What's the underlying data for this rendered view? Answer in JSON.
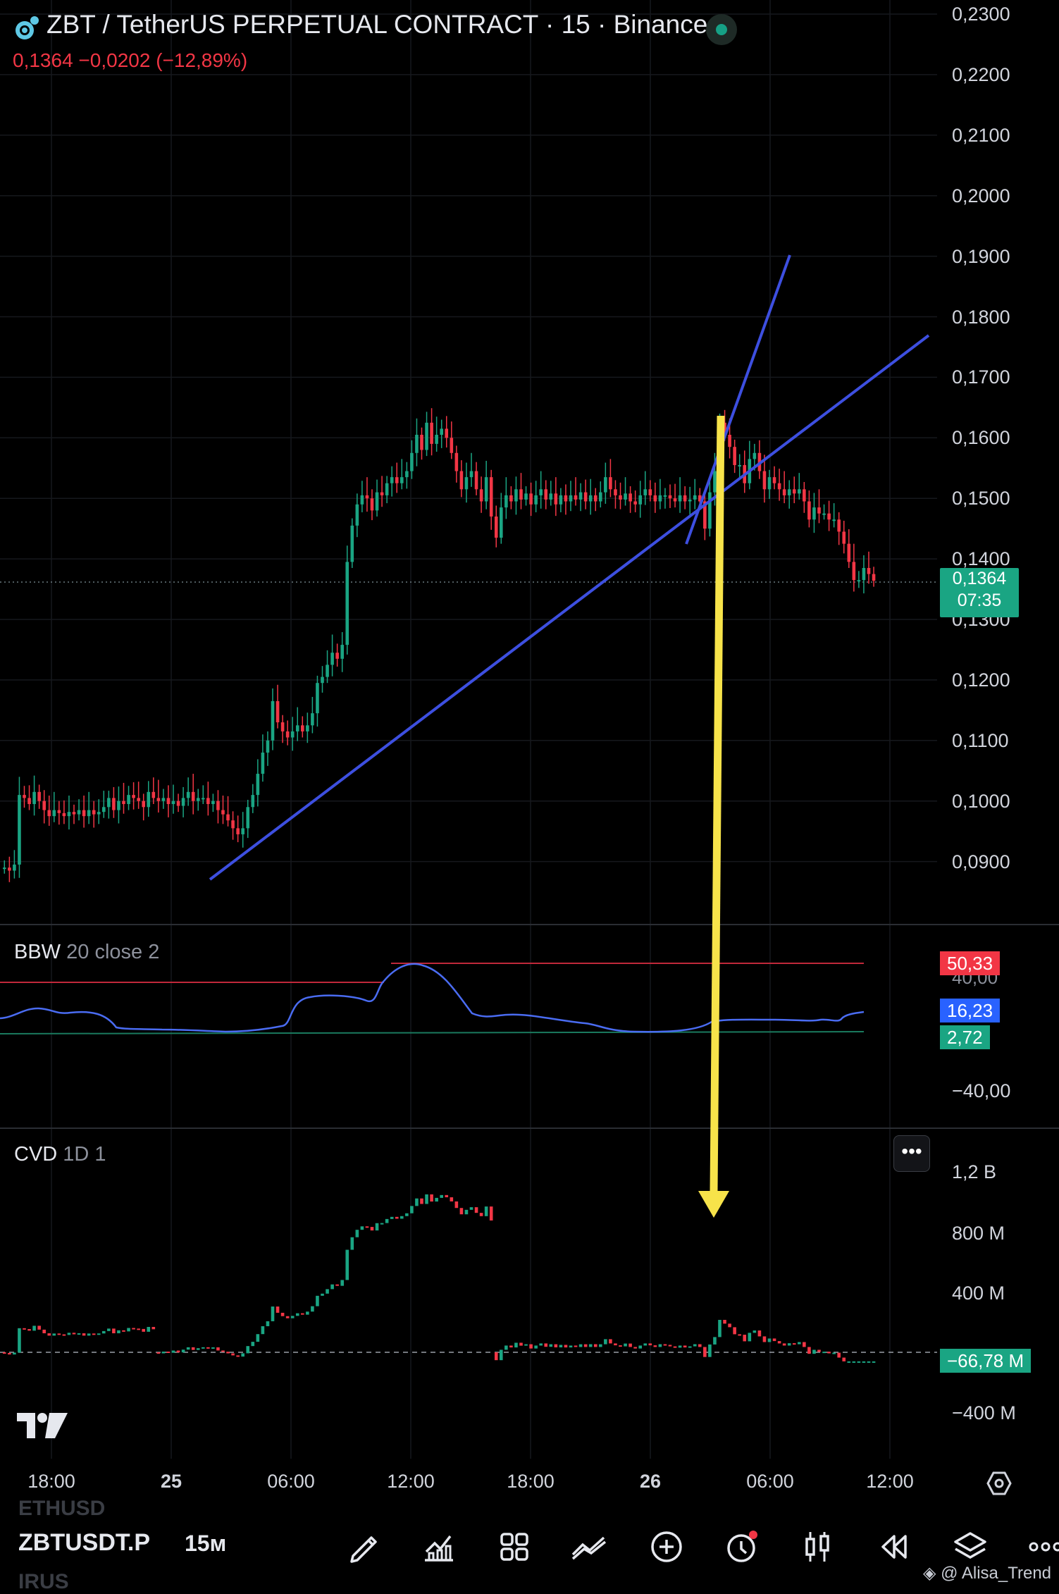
{
  "header": {
    "title": "ZBT / TetherUS PERPETUAL CONTRACT · 15 · Binance",
    "quote": "0,1364  −0,0202 (−12,89%)"
  },
  "price_axis": {
    "ticks": [
      "0,2300",
      "0,2200",
      "0,2100",
      "0,2000",
      "0,1900",
      "0,1800",
      "0,1700",
      "0,1600",
      "0,1500",
      "0,1400",
      "0,1300",
      "0,1200",
      "0,1100",
      "0,1000",
      "0,0900"
    ],
    "last_price": "0,1364",
    "countdown": "07:35"
  },
  "bbw": {
    "title": "BBW",
    "params": "20 close 2",
    "upper_label": "50,33",
    "upper_hidden_tick": "40,00",
    "value_label": "16,23",
    "lower_label": "2,72",
    "axis_tick": "−40,00",
    "colors": {
      "line": "#3d6bf2",
      "upper": "#f23645",
      "lower": "#1aa583"
    }
  },
  "cvd": {
    "title": "CVD",
    "params": "1D 1",
    "more_label": "•••",
    "ticks": [
      "1,2 B",
      "800 M",
      "400 M",
      "−400 M"
    ],
    "value_label": "−66,78 M"
  },
  "time_axis": {
    "labels": [
      "18:00",
      "25",
      "06:00",
      "12:00",
      "18:00",
      "26",
      "06:00",
      "12:00"
    ]
  },
  "bottom_bar": {
    "symbol": "ZBTUSDT.P",
    "timeframe": "15м",
    "ghost_above": "ETHUSD",
    "ghost_below": "IRUS",
    "icons": [
      "draw-icon",
      "indicators-icon",
      "layout-icon",
      "compare-icon",
      "add-icon",
      "alert-icon",
      "chart-type-icon",
      "replay-icon",
      "layers-icon",
      "more-icon"
    ]
  },
  "watermark": "@ Alisa_Trend",
  "colors": {
    "up": "#1aa583",
    "down": "#f23645",
    "trendline": "#3d4fe0",
    "arrow": "#f7e34a"
  },
  "chart_data": {
    "type": "candlestick",
    "ylim": [
      0.085,
      0.23
    ],
    "last": 0.1364,
    "x_labels": [
      "18:00",
      "25",
      "06:00",
      "12:00",
      "18:00",
      "26",
      "06:00",
      "12:00"
    ],
    "closes": [
      0.089,
      0.0885,
      0.0895,
      0.101,
      0.1005,
      0.0995,
      0.1015,
      0.1,
      0.0985,
      0.0975,
      0.0985,
      0.098,
      0.0975,
      0.0982,
      0.0978,
      0.0985,
      0.0975,
      0.0985,
      0.0978,
      0.0982,
      0.099,
      0.1005,
      0.0985,
      0.1,
      0.0995,
      0.101,
      0.1005,
      0.1,
      0.099,
      0.1015,
      0.1005,
      0.1,
      0.1005,
      0.0995,
      0.1,
      0.0992,
      0.1005,
      0.1015,
      0.1,
      0.1005,
      0.1005,
      0.0995,
      0.1,
      0.0985,
      0.0978,
      0.0968,
      0.0955,
      0.0945,
      0.0955,
      0.099,
      0.101,
      0.1045,
      0.108,
      0.11,
      0.1165,
      0.113,
      0.1115,
      0.1105,
      0.1115,
      0.1125,
      0.1115,
      0.1125,
      0.1145,
      0.1195,
      0.1205,
      0.1225,
      0.1245,
      0.1235,
      0.1258,
      0.1395,
      0.1455,
      0.149,
      0.1505,
      0.15,
      0.148,
      0.151,
      0.1505,
      0.1525,
      0.1535,
      0.1525,
      0.1535,
      0.1545,
      0.1575,
      0.1605,
      0.158,
      0.1625,
      0.159,
      0.1605,
      0.1615,
      0.16,
      0.1575,
      0.1545,
      0.1515,
      0.1535,
      0.1545,
      0.1515,
      0.1495,
      0.1535,
      0.147,
      0.1435,
      0.1485,
      0.1505,
      0.1495,
      0.1515,
      0.1498,
      0.1508,
      0.149,
      0.1505,
      0.1515,
      0.1498,
      0.1508,
      0.149,
      0.1505,
      0.1495,
      0.1505,
      0.1498,
      0.151,
      0.1495,
      0.1505,
      0.1495,
      0.151,
      0.1535,
      0.1515,
      0.1505,
      0.1498,
      0.1508,
      0.1495,
      0.149,
      0.1505,
      0.1515,
      0.1505,
      0.1495,
      0.1505,
      0.1505,
      0.15,
      0.1495,
      0.1505,
      0.1495,
      0.1498,
      0.1505,
      0.1495,
      0.145,
      0.151,
      0.1545,
      0.1625,
      0.1605,
      0.1585,
      0.1555,
      0.1555,
      0.1525,
      0.1565,
      0.1575,
      0.1545,
      0.1515,
      0.1535,
      0.1525,
      0.1515,
      0.1505,
      0.1515,
      0.1508,
      0.1515,
      0.1495,
      0.1465,
      0.1485,
      0.1475,
      0.1475,
      0.1465,
      0.1465,
      0.1445,
      0.1425,
      0.1395,
      0.1365,
      0.1365,
      0.1385,
      0.1375,
      0.1364
    ]
  }
}
